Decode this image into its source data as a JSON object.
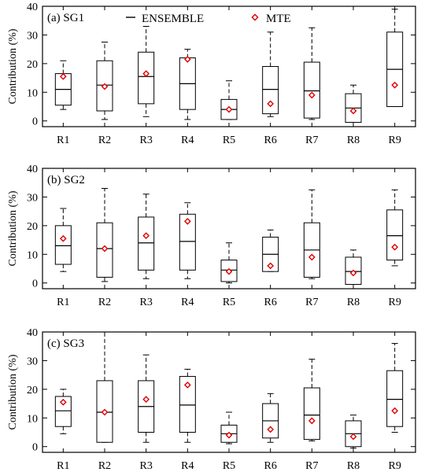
{
  "chart_data": [
    {
      "type": "box",
      "title": "(a) SG1",
      "ylabel": "Contribution (%)",
      "ylim": [
        -2,
        40
      ],
      "yticks": [
        0,
        10,
        20,
        30,
        40
      ],
      "categories": [
        "R1",
        "R2",
        "R3",
        "R4",
        "R5",
        "R6",
        "R7",
        "R8",
        "R9"
      ],
      "legend": {
        "placement": "top-center",
        "ensemble": "ENSEMBLE",
        "mte": "MTE"
      },
      "series": [
        {
          "name": "ENSEMBLE",
          "boxes": [
            {
              "min": 4,
              "q1": 5.5,
              "median": 11,
              "q3": 16.5,
              "max": 21
            },
            {
              "min": 0.5,
              "q1": 3.5,
              "median": 12.5,
              "q3": 21,
              "max": 27.5
            },
            {
              "min": 1.5,
              "q1": 6,
              "median": 15.5,
              "q3": 24,
              "max": 33
            },
            {
              "min": 0.5,
              "q1": 4,
              "median": 13,
              "q3": 22,
              "max": 25
            },
            {
              "min": 0.5,
              "q1": 0.5,
              "median": 4,
              "q3": 7.5,
              "max": 14
            },
            {
              "min": 1.5,
              "q1": 2.5,
              "median": 11,
              "q3": 19,
              "max": 31
            },
            {
              "min": 0.5,
              "q1": 1,
              "median": 10.5,
              "q3": 20.5,
              "max": 32.5
            },
            {
              "min": -0.5,
              "q1": -0.5,
              "median": 4.5,
              "q3": 9.5,
              "max": 12.5
            },
            {
              "min": 5,
              "q1": 5,
              "median": 18,
              "q3": 31,
              "max": 39
            }
          ]
        },
        {
          "name": "MTE",
          "values": [
            15.5,
            12,
            16.5,
            21.5,
            4,
            6,
            9,
            3.5,
            12.5
          ]
        }
      ]
    },
    {
      "type": "box",
      "title": "(b) SG2",
      "ylabel": "Contribution (%)",
      "ylim": [
        -2,
        40
      ],
      "yticks": [
        0,
        10,
        20,
        30,
        40
      ],
      "categories": [
        "R1",
        "R2",
        "R3",
        "R4",
        "R5",
        "R6",
        "R7",
        "R8",
        "R9"
      ],
      "series": [
        {
          "name": "ENSEMBLE",
          "boxes": [
            {
              "min": 4,
              "q1": 6.5,
              "median": 13,
              "q3": 20,
              "max": 26
            },
            {
              "min": 0.5,
              "q1": 2,
              "median": 12,
              "q3": 21,
              "max": 33
            },
            {
              "min": 1.5,
              "q1": 4.5,
              "median": 14,
              "q3": 23,
              "max": 31
            },
            {
              "min": 1.5,
              "q1": 4.5,
              "median": 14.5,
              "q3": 24,
              "max": 28
            },
            {
              "min": 0,
              "q1": 0.5,
              "median": 4.5,
              "q3": 8,
              "max": 14
            },
            {
              "min": 4,
              "q1": 4,
              "median": 10,
              "q3": 16,
              "max": 18.5
            },
            {
              "min": 1.5,
              "q1": 2,
              "median": 11.5,
              "q3": 21,
              "max": 32.5
            },
            {
              "min": -0.5,
              "q1": -0.5,
              "median": 4,
              "q3": 9,
              "max": 11.5
            },
            {
              "min": 6,
              "q1": 8,
              "median": 16.5,
              "q3": 25.5,
              "max": 32.5
            }
          ]
        },
        {
          "name": "MTE",
          "values": [
            15.5,
            12,
            16.5,
            21.5,
            4,
            6,
            9,
            3.5,
            12.5
          ]
        }
      ]
    },
    {
      "type": "box",
      "title": "(c) SG3",
      "ylabel": "Contribution (%)",
      "ylim": [
        -2,
        40
      ],
      "yticks": [
        0,
        10,
        20,
        30,
        40
      ],
      "categories": [
        "R1",
        "R2",
        "R3",
        "R4",
        "R5",
        "R6",
        "R7",
        "R8",
        "R9"
      ],
      "series": [
        {
          "name": "ENSEMBLE",
          "boxes": [
            {
              "min": 4.5,
              "q1": 7,
              "median": 12.5,
              "q3": 17.5,
              "max": 20
            },
            {
              "min": 1.5,
              "q1": 1.5,
              "median": 12,
              "q3": 23,
              "max": 40
            },
            {
              "min": 1.5,
              "q1": 5,
              "median": 14,
              "q3": 23,
              "max": 32
            },
            {
              "min": 1.5,
              "q1": 5,
              "median": 14.5,
              "q3": 24.5,
              "max": 27
            },
            {
              "min": 1,
              "q1": 1.5,
              "median": 4.5,
              "q3": 7.5,
              "max": 12
            },
            {
              "min": 1.5,
              "q1": 3,
              "median": 9,
              "q3": 15,
              "max": 18.5
            },
            {
              "min": 2,
              "q1": 2.5,
              "median": 11,
              "q3": 20.5,
              "max": 30.5
            },
            {
              "min": -0.5,
              "q1": 0,
              "median": 4.5,
              "q3": 9,
              "max": 11
            },
            {
              "min": 5,
              "q1": 7,
              "median": 16.5,
              "q3": 26.5,
              "max": 36
            }
          ]
        },
        {
          "name": "MTE",
          "values": [
            15.5,
            12,
            16.5,
            21.5,
            4,
            6,
            9,
            3.5,
            12.5
          ]
        }
      ]
    }
  ],
  "colors": {
    "mte_marker": "#e00000",
    "box_stroke": "#000000"
  }
}
